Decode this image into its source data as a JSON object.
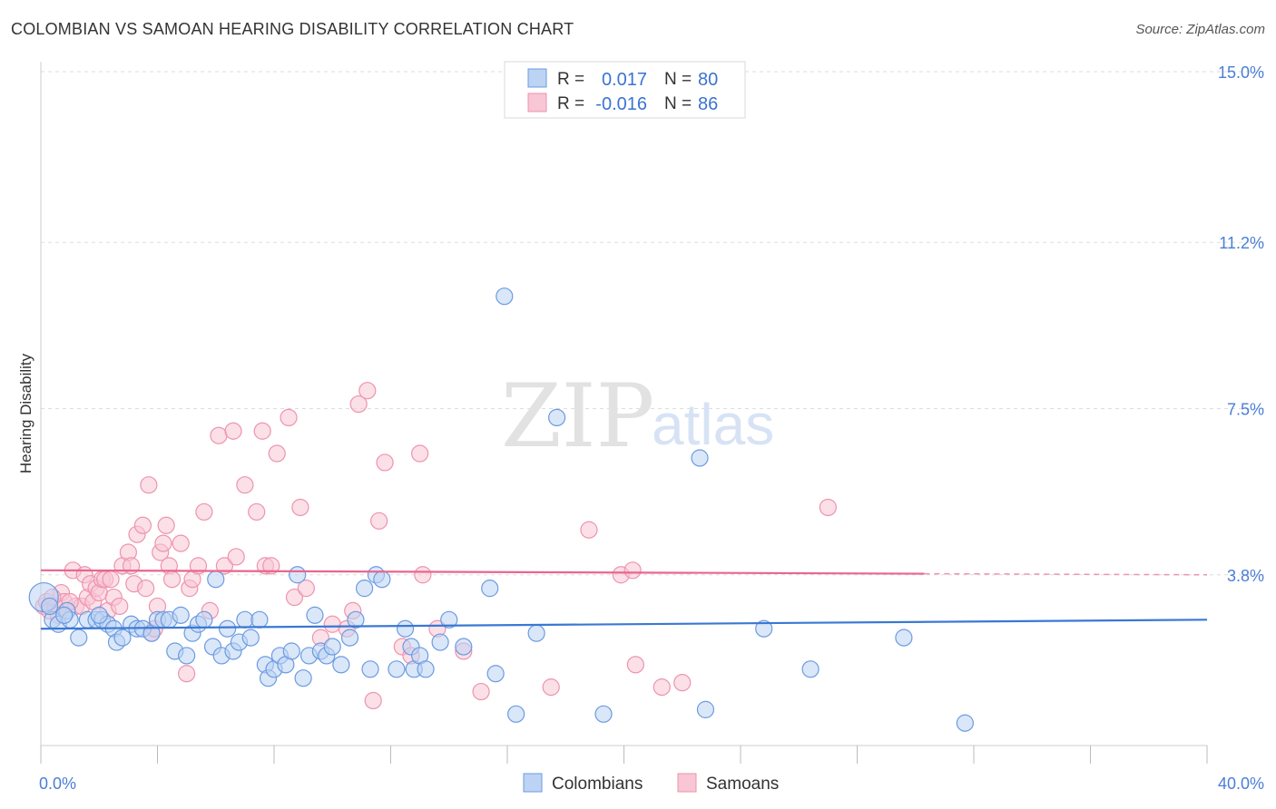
{
  "header": {
    "title": "COLOMBIAN VS SAMOAN HEARING DISABILITY CORRELATION CHART",
    "source": "Source: ZipAtlas.com"
  },
  "watermark": {
    "zip": "ZIP",
    "atlas": "atlas"
  },
  "colors": {
    "blue": "#3a78d4",
    "blue_fill": "#bcd3f4",
    "blue_stroke": "#6b9be0",
    "pink": "#e8668f",
    "pink_fill": "#f8c6d5",
    "pink_stroke": "#ee93ae",
    "tick_text": "#4a7ed6",
    "grid": "#dddddd"
  },
  "legend_top": {
    "rows": [
      {
        "r_label": "R =",
        "r_value": "0.017",
        "n_label": "N =",
        "n_value": "80"
      },
      {
        "r_label": "R =",
        "r_value": "-0.016",
        "n_label": "N =",
        "n_value": "86"
      }
    ]
  },
  "legend_bottom": {
    "items": [
      {
        "label": "Colombians"
      },
      {
        "label": "Samoans"
      }
    ]
  },
  "chart_data": {
    "type": "scatter",
    "title": "COLOMBIAN VS SAMOAN HEARING DISABILITY CORRELATION CHART",
    "xlabel": "",
    "ylabel": "Hearing Disability",
    "xlim": [
      0,
      40
    ],
    "ylim": [
      0,
      15
    ],
    "x_tick_labels": [
      "0.0%",
      "40.0%"
    ],
    "y_ticks": [
      3.8,
      7.5,
      11.2,
      15.0
    ],
    "y_tick_labels": [
      "3.8%",
      "7.5%",
      "11.2%",
      "15.0%"
    ],
    "grid": true,
    "legend_placement": "top-center and bottom",
    "series": [
      {
        "name": "Colombians",
        "color": "#3a78d4",
        "r": 0.017,
        "n": 80,
        "trend": {
          "x": [
            0,
            40
          ],
          "y": [
            2.6,
            2.8
          ]
        },
        "points": [
          [
            0.1,
            3.3
          ],
          [
            0.4,
            2.8
          ],
          [
            0.6,
            2.7
          ],
          [
            0.9,
            3.0
          ],
          [
            1.0,
            2.8
          ],
          [
            1.3,
            2.4
          ],
          [
            1.6,
            2.8
          ],
          [
            1.9,
            2.8
          ],
          [
            2.1,
            2.8
          ],
          [
            2.3,
            2.7
          ],
          [
            2.5,
            2.6
          ],
          [
            2.6,
            2.3
          ],
          [
            2.8,
            2.4
          ],
          [
            3.1,
            2.7
          ],
          [
            3.3,
            2.6
          ],
          [
            3.5,
            2.6
          ],
          [
            3.8,
            2.5
          ],
          [
            4.0,
            2.8
          ],
          [
            4.2,
            2.8
          ],
          [
            4.4,
            2.8
          ],
          [
            4.6,
            2.1
          ],
          [
            4.8,
            2.9
          ],
          [
            5.0,
            2.0
          ],
          [
            5.2,
            2.5
          ],
          [
            5.4,
            2.7
          ],
          [
            5.6,
            2.8
          ],
          [
            5.9,
            2.2
          ],
          [
            6.0,
            3.7
          ],
          [
            6.2,
            2.0
          ],
          [
            6.4,
            2.6
          ],
          [
            6.6,
            2.1
          ],
          [
            6.8,
            2.3
          ],
          [
            7.0,
            2.8
          ],
          [
            7.2,
            2.4
          ],
          [
            7.5,
            2.8
          ],
          [
            7.7,
            1.8
          ],
          [
            7.8,
            1.5
          ],
          [
            8.0,
            1.7
          ],
          [
            8.2,
            2.0
          ],
          [
            8.4,
            1.8
          ],
          [
            8.6,
            2.1
          ],
          [
            8.8,
            3.8
          ],
          [
            9.0,
            1.5
          ],
          [
            9.2,
            2.0
          ],
          [
            9.4,
            2.9
          ],
          [
            9.6,
            2.1
          ],
          [
            9.8,
            2.0
          ],
          [
            10.0,
            2.2
          ],
          [
            10.3,
            1.8
          ],
          [
            10.6,
            2.4
          ],
          [
            10.8,
            2.8
          ],
          [
            11.1,
            3.5
          ],
          [
            11.3,
            1.7
          ],
          [
            11.5,
            3.8
          ],
          [
            11.7,
            3.7
          ],
          [
            12.2,
            1.7
          ],
          [
            12.5,
            2.6
          ],
          [
            12.8,
            1.7
          ],
          [
            12.7,
            2.2
          ],
          [
            13.0,
            2.0
          ],
          [
            13.2,
            1.7
          ],
          [
            13.7,
            2.3
          ],
          [
            14.0,
            2.8
          ],
          [
            14.5,
            2.2
          ],
          [
            15.4,
            3.5
          ],
          [
            15.6,
            1.6
          ],
          [
            15.9,
            10.0
          ],
          [
            16.3,
            0.7
          ],
          [
            17.0,
            2.5
          ],
          [
            17.7,
            7.3
          ],
          [
            19.3,
            0.7
          ],
          [
            22.6,
            6.4
          ],
          [
            22.8,
            0.8
          ],
          [
            24.8,
            2.6
          ],
          [
            26.4,
            1.7
          ],
          [
            29.6,
            2.4
          ],
          [
            31.7,
            0.5
          ],
          [
            0.3,
            3.1
          ],
          [
            0.8,
            2.9
          ],
          [
            2.0,
            2.9
          ]
        ]
      },
      {
        "name": "Samoans",
        "color": "#e8668f",
        "r": -0.016,
        "n": 86,
        "trend": {
          "x": [
            0,
            40
          ],
          "y": [
            3.9,
            3.8
          ]
        },
        "points": [
          [
            0.1,
            3.1
          ],
          [
            0.2,
            3.2
          ],
          [
            0.3,
            3.0
          ],
          [
            0.5,
            3.1
          ],
          [
            0.6,
            2.9
          ],
          [
            0.7,
            3.4
          ],
          [
            0.8,
            3.2
          ],
          [
            0.9,
            3.0
          ],
          [
            1.1,
            3.9
          ],
          [
            1.2,
            3.1
          ],
          [
            1.4,
            3.1
          ],
          [
            1.5,
            3.8
          ],
          [
            1.6,
            3.3
          ],
          [
            1.7,
            3.6
          ],
          [
            1.8,
            3.2
          ],
          [
            1.9,
            3.5
          ],
          [
            2.0,
            3.4
          ],
          [
            2.1,
            3.7
          ],
          [
            2.2,
            3.7
          ],
          [
            2.3,
            3.0
          ],
          [
            2.4,
            3.7
          ],
          [
            2.5,
            3.3
          ],
          [
            2.7,
            3.1
          ],
          [
            2.8,
            4.0
          ],
          [
            3.0,
            4.3
          ],
          [
            3.1,
            4.0
          ],
          [
            3.2,
            3.6
          ],
          [
            3.3,
            4.7
          ],
          [
            3.5,
            4.9
          ],
          [
            3.6,
            3.5
          ],
          [
            3.7,
            5.8
          ],
          [
            3.8,
            2.5
          ],
          [
            3.9,
            2.6
          ],
          [
            4.0,
            3.1
          ],
          [
            4.1,
            4.3
          ],
          [
            4.2,
            4.5
          ],
          [
            4.3,
            4.9
          ],
          [
            4.4,
            4.0
          ],
          [
            4.5,
            3.7
          ],
          [
            4.8,
            4.5
          ],
          [
            5.0,
            1.6
          ],
          [
            5.1,
            3.5
          ],
          [
            5.2,
            3.7
          ],
          [
            5.4,
            4.0
          ],
          [
            5.6,
            5.2
          ],
          [
            5.8,
            3.0
          ],
          [
            6.1,
            6.9
          ],
          [
            6.3,
            4.0
          ],
          [
            6.6,
            7.0
          ],
          [
            6.7,
            4.2
          ],
          [
            7.0,
            5.8
          ],
          [
            7.4,
            5.2
          ],
          [
            7.6,
            7.0
          ],
          [
            7.7,
            4.0
          ],
          [
            7.9,
            4.0
          ],
          [
            8.1,
            6.5
          ],
          [
            8.5,
            7.3
          ],
          [
            8.7,
            3.3
          ],
          [
            8.9,
            5.3
          ],
          [
            9.1,
            3.5
          ],
          [
            9.6,
            2.4
          ],
          [
            10.0,
            2.7
          ],
          [
            10.5,
            2.6
          ],
          [
            10.7,
            3.0
          ],
          [
            10.9,
            7.6
          ],
          [
            11.2,
            7.9
          ],
          [
            11.4,
            1.0
          ],
          [
            11.6,
            5.0
          ],
          [
            11.8,
            6.3
          ],
          [
            12.4,
            2.2
          ],
          [
            12.7,
            2.0
          ],
          [
            13.0,
            6.5
          ],
          [
            13.1,
            3.8
          ],
          [
            13.6,
            2.6
          ],
          [
            14.5,
            2.1
          ],
          [
            15.1,
            1.2
          ],
          [
            17.5,
            1.3
          ],
          [
            18.8,
            4.8
          ],
          [
            19.9,
            3.8
          ],
          [
            20.3,
            3.9
          ],
          [
            20.4,
            1.8
          ],
          [
            21.3,
            1.3
          ],
          [
            22.0,
            1.4
          ],
          [
            27.0,
            5.3
          ],
          [
            0.4,
            3.3
          ],
          [
            1.0,
            3.2
          ]
        ]
      }
    ]
  }
}
